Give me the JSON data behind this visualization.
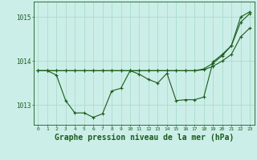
{
  "bg_color": "#cceee8",
  "grid_color": "#aaddcc",
  "line_color": "#1a5c1a",
  "marker_color": "#1a5c1a",
  "xlabel": "Graphe pression niveau de la mer (hPa)",
  "xlabel_fontsize": 7,
  "yticks": [
    1013,
    1014,
    1015
  ],
  "ylim": [
    1012.55,
    1015.35
  ],
  "xlim": [
    -0.5,
    23.5
  ],
  "series1": [
    1013.78,
    1013.78,
    1013.68,
    1013.1,
    1012.82,
    1012.82,
    1012.72,
    1012.8,
    1013.32,
    1013.38,
    1013.78,
    1013.7,
    1013.58,
    1013.5,
    1013.72,
    1013.1,
    1013.12,
    1013.12,
    1013.18,
    1013.98,
    1014.15,
    1014.35,
    1015.0,
    1015.12
  ],
  "series2": [
    1013.78,
    1013.78,
    1013.78,
    1013.78,
    1013.78,
    1013.78,
    1013.78,
    1013.78,
    1013.78,
    1013.78,
    1013.78,
    1013.78,
    1013.78,
    1013.78,
    1013.78,
    1013.78,
    1013.78,
    1013.78,
    1013.8,
    1013.88,
    1014.0,
    1014.15,
    1014.55,
    1014.75
  ],
  "series3": [
    1013.78,
    1013.78,
    1013.78,
    1013.78,
    1013.78,
    1013.78,
    1013.78,
    1013.78,
    1013.78,
    1013.78,
    1013.78,
    1013.78,
    1013.78,
    1013.78,
    1013.78,
    1013.78,
    1013.78,
    1013.78,
    1013.82,
    1013.95,
    1014.12,
    1014.35,
    1014.88,
    1015.08
  ]
}
